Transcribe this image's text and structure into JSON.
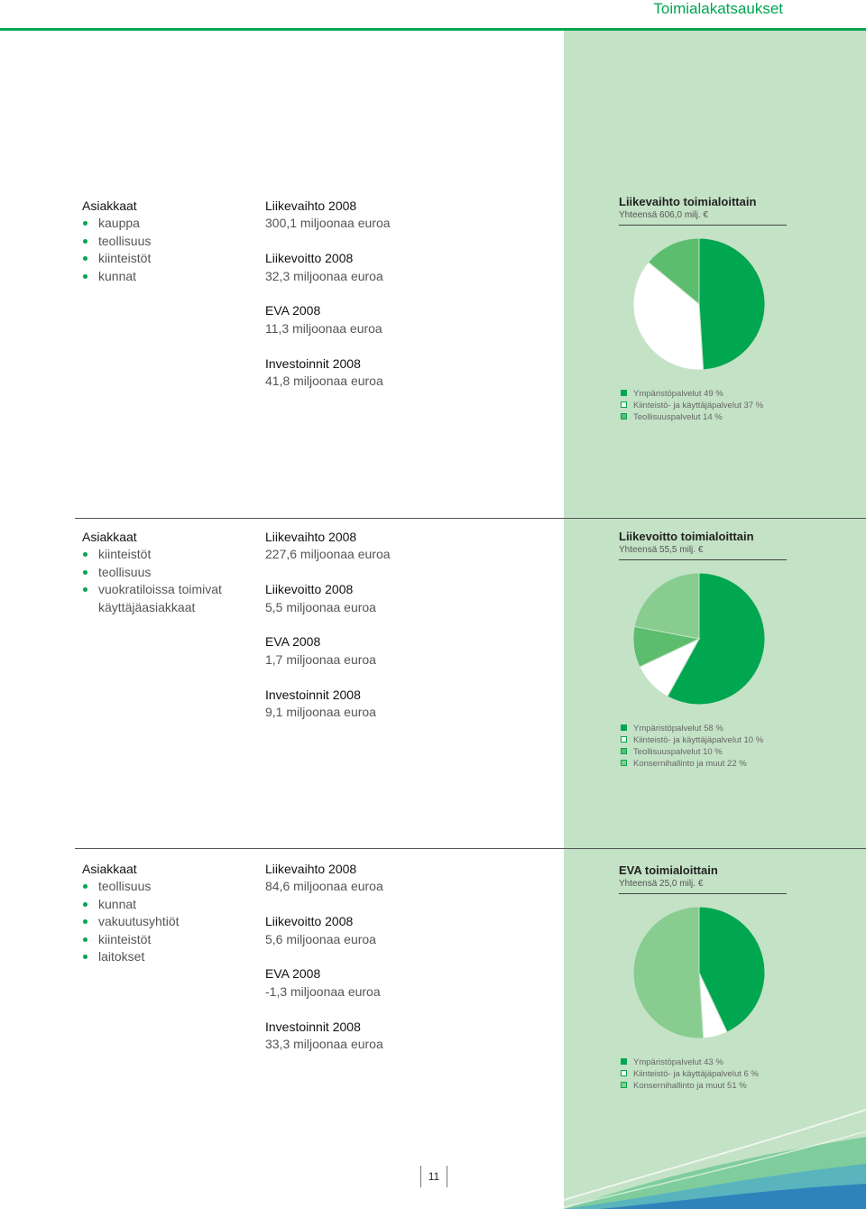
{
  "header": {
    "title": "Toimialakatsaukset"
  },
  "page_number": "11",
  "colors": {
    "accent": "#00a650",
    "panel": "#c4e2c6"
  },
  "sections": [
    {
      "customers_title": "Asiakkaat",
      "customers": [
        {
          "text": "kauppa",
          "bullet": true
        },
        {
          "text": "teollisuus",
          "bullet": true
        },
        {
          "text": "kiinteistöt",
          "bullet": true
        },
        {
          "text": "kunnat",
          "bullet": true
        }
      ],
      "metrics": [
        {
          "label": "Liikevaihto 2008",
          "value": "300,1 miljoonaa euroa"
        },
        {
          "label": "Liikevoitto 2008",
          "value": "32,3 miljoonaa euroa"
        },
        {
          "label": "EVA 2008",
          "value": "11,3 miljoonaa euroa"
        },
        {
          "label": "Investoinnit 2008",
          "value": "41,8 miljoonaa euroa"
        }
      ]
    },
    {
      "customers_title": "Asiakkaat",
      "customers": [
        {
          "text": "kiinteistöt",
          "bullet": true
        },
        {
          "text": "teollisuus",
          "bullet": true
        },
        {
          "text": "vuokratiloissa toimivat",
          "bullet": true
        },
        {
          "text": "käyttäjäasiakkaat",
          "bullet": false
        }
      ],
      "metrics": [
        {
          "label": "Liikevaihto 2008",
          "value": "227,6 miljoonaa euroa"
        },
        {
          "label": "Liikevoitto 2008",
          "value": "5,5 miljoonaa euroa"
        },
        {
          "label": "EVA 2008",
          "value": "1,7 miljoonaa euroa"
        },
        {
          "label": "Investoinnit 2008",
          "value": "9,1 miljoonaa euroa"
        }
      ]
    },
    {
      "customers_title": "Asiakkaat",
      "customers": [
        {
          "text": "teollisuus",
          "bullet": true
        },
        {
          "text": "kunnat",
          "bullet": true
        },
        {
          "text": "vakuutusyhtiöt",
          "bullet": true
        },
        {
          "text": "kiinteistöt",
          "bullet": true
        },
        {
          "text": "laitokset",
          "bullet": true
        }
      ],
      "metrics": [
        {
          "label": "Liikevaihto 2008",
          "value": "84,6 miljoonaa euroa"
        },
        {
          "label": "Liikevoitto 2008",
          "value": "5,6 miljoonaa euroa"
        },
        {
          "label": "EVA 2008",
          "value": "-1,3 miljoonaa euroa"
        },
        {
          "label": "Investoinnit 2008",
          "value": "33,3 miljoonaa euroa"
        }
      ]
    }
  ],
  "chart_data": [
    {
      "type": "pie",
      "title": "Liikevaihto toimialoittain",
      "subtitle": "Yhteensä 606,0 milj. €",
      "slices": [
        {
          "label": "Ympäristöpalvelut 49 %",
          "value": 49,
          "color": "#00a650"
        },
        {
          "label": "Kiinteistö- ja käyttäjäpalvelut 37 %",
          "value": 37,
          "color": "#ffffff"
        },
        {
          "label": "Teollisuuspalvelut 14 %",
          "value": 14,
          "color": "#5cbd6e"
        }
      ]
    },
    {
      "type": "pie",
      "title": "Liikevoitto toimialoittain",
      "subtitle": "Yhteensä 55,5 milj. €",
      "slices": [
        {
          "label": "Ympäristöpalvelut 58 %",
          "value": 58,
          "color": "#00a650"
        },
        {
          "label": "Kiinteistö- ja käyttäjäpalvelut 10 %",
          "value": 10,
          "color": "#ffffff"
        },
        {
          "label": "Teollisuuspalvelut 10 %",
          "value": 10,
          "color": "#5cbd6e"
        },
        {
          "label": "Konsernihallinto ja muut 22 %",
          "value": 22,
          "color": "#88cc90"
        }
      ]
    },
    {
      "type": "pie",
      "title": "EVA toimialoittain",
      "subtitle": "Yhteensä 25,0 milj. €",
      "slices": [
        {
          "label": "Ympäristöpalvelut 43 %",
          "value": 43,
          "color": "#00a650"
        },
        {
          "label": "Kiinteistö- ja käyttäjäpalvelut 6 %",
          "value": 6,
          "color": "#ffffff"
        },
        {
          "label": "Konsernihallinto ja muut 51 %",
          "value": 51,
          "color": "#88cc90"
        }
      ]
    }
  ]
}
